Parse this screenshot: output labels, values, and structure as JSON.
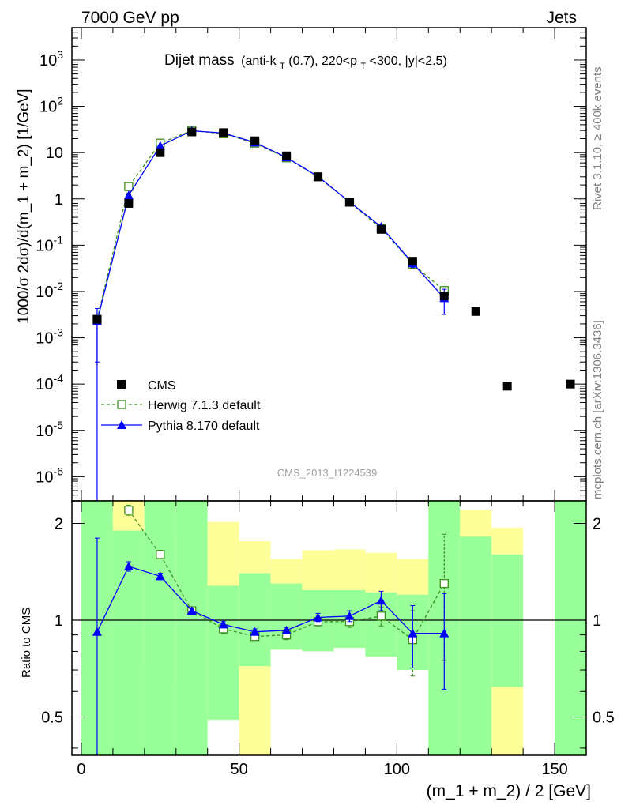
{
  "header": {
    "left": "7000 GeV pp",
    "right": "Jets"
  },
  "side_labels": {
    "rivet": "Rivet 3.1.10, ≥ 400k events",
    "mcplots": "mcplots.cern.ch [arXiv:1306.3436]"
  },
  "chart_data": [
    {
      "type": "scatter",
      "title_main": "Dijet mass",
      "title_sub_parts": [
        "(anti-k",
        "T",
        "(0.7), 220<p",
        "T",
        "<300, |y|<2.5)"
      ],
      "watermark": "CMS_2013_I1224539",
      "ylabel": "1000/σ 2dσ)/d(m_1 + m_2) [1/GeV]",
      "xlim": [
        -3,
        160
      ],
      "ylim": [
        3e-07,
        5000
      ],
      "yscale": "log",
      "y_tick_labels": [
        "10^-6",
        "10^-5",
        "10^-4",
        "10^-3",
        "10^-2",
        "10^-1",
        "1",
        "10",
        "10^2",
        "10^3"
      ],
      "legend_position": "bottom-left",
      "series": [
        {
          "name": "CMS",
          "color": "#000000",
          "marker": "square-filled",
          "x": [
            5,
            15,
            25,
            35,
            45,
            55,
            65,
            75,
            85,
            95,
            105,
            115,
            125,
            135,
            155
          ],
          "y": [
            0.0025,
            0.8,
            10,
            28,
            27,
            18,
            8.5,
            3,
            0.85,
            0.22,
            0.045,
            0.008,
            0.0037,
            9e-05,
            0.0001
          ]
        },
        {
          "name": "Herwig 7.1.3 default",
          "color": "#3d8f1e",
          "marker": "square-open",
          "line": "dashed",
          "x": [
            5,
            15,
            25,
            35,
            45,
            55,
            65,
            75,
            85,
            95,
            105,
            115
          ],
          "y": [
            0.0025,
            1.85,
            16,
            30,
            25.5,
            16,
            7.7,
            3,
            0.85,
            0.23,
            0.039,
            0.0105
          ],
          "yerr": [
            0,
            0.1,
            0.5,
            0.5,
            0.5,
            0.3,
            0.2,
            0.08,
            0.03,
            0.015,
            0.006,
            0.004
          ]
        },
        {
          "name": "Pythia 8.170 default",
          "color": "#0000ff",
          "marker": "triangle-filled",
          "line": "solid",
          "x": [
            5,
            15,
            25,
            35,
            45,
            55,
            65,
            75,
            85,
            95,
            105,
            115
          ],
          "y": [
            0.0023,
            1.2,
            14,
            29.5,
            26.5,
            16.5,
            7.9,
            3.05,
            0.86,
            0.25,
            0.041,
            0.0072
          ],
          "yerr": [
            0.002,
            0.08,
            0.4,
            0.5,
            0.5,
            0.3,
            0.2,
            0.08,
            0.03,
            0.02,
            0.008,
            0.004
          ]
        }
      ]
    },
    {
      "type": "scatter",
      "ylabel": "Ratio to CMS",
      "xlabel": "(m_1 + m_2) / 2 [GeV]",
      "xlim": [
        -3,
        160
      ],
      "ylim": [
        0.38,
        2.35
      ],
      "yscale": "log",
      "reference_line": 1,
      "y_tick_labels": [
        "0.5",
        "1",
        "2"
      ],
      "x_tick_labels": [
        "0",
        "50",
        "100",
        "150"
      ],
      "x_ticks": [
        0,
        50,
        100,
        150
      ],
      "bands": {
        "colors": {
          "outer": "#ffff99",
          "inner": "#99ff99"
        },
        "bins": [
          {
            "x0": 0,
            "x1": 10,
            "outer": [
              0.3,
              3.0
            ],
            "inner": [
              0.3,
              3.0
            ]
          },
          {
            "x0": 10,
            "x1": 20,
            "outer": [
              0.3,
              3.0
            ],
            "inner": [
              0.3,
              1.9
            ]
          },
          {
            "x0": 20,
            "x1": 30,
            "outer": [
              0.72,
              1.48
            ],
            "inner": [
              0.3,
              3.0
            ]
          },
          {
            "x0": 30,
            "x1": 40,
            "outer": [
              0.65,
              1.85
            ],
            "inner": [
              0.3,
              3.0
            ]
          },
          {
            "x0": 40,
            "x1": 50,
            "outer": [
              0.49,
              2.02
            ],
            "inner": [
              0.49,
              1.28
            ]
          },
          {
            "x0": 50,
            "x1": 60,
            "outer": [
              0.3,
              1.76
            ],
            "inner": [
              0.72,
              1.4
            ]
          },
          {
            "x0": 60,
            "x1": 70,
            "outer": [
              0.81,
              1.55
            ],
            "inner": [
              0.81,
              1.3
            ]
          },
          {
            "x0": 70,
            "x1": 80,
            "outer": [
              0.8,
              1.65
            ],
            "inner": [
              0.8,
              1.24
            ]
          },
          {
            "x0": 80,
            "x1": 90,
            "outer": [
              0.82,
              1.66
            ],
            "inner": [
              0.82,
              1.24
            ]
          },
          {
            "x0": 90,
            "x1": 100,
            "outer": [
              0.77,
              1.62
            ],
            "inner": [
              0.77,
              1.22
            ]
          },
          {
            "x0": 100,
            "x1": 110,
            "outer": [
              0.7,
              1.55
            ],
            "inner": [
              0.7,
              1.2
            ]
          },
          {
            "x0": 110,
            "x1": 120,
            "outer": [
              0.3,
              3.0
            ],
            "inner": [
              0.3,
              3.0
            ]
          },
          {
            "x0": 120,
            "x1": 130,
            "outer": [
              0.3,
              2.2
            ],
            "inner": [
              0.3,
              1.82
            ]
          },
          {
            "x0": 130,
            "x1": 140,
            "outer": [
              0.3,
              1.94
            ],
            "inner": [
              0.62,
              1.6
            ]
          },
          {
            "x0": 150,
            "x1": 160,
            "outer": [
              0.3,
              3.0
            ],
            "inner": [
              0.3,
              3.0
            ]
          }
        ]
      },
      "series": [
        {
          "name": "Herwig 7.1.3 default",
          "color": "#3d8f1e",
          "marker": "square-open",
          "line": "dashed",
          "x": [
            15,
            25,
            35,
            45,
            55,
            65,
            75,
            85,
            95,
            105,
            115
          ],
          "y": [
            2.2,
            1.6,
            1.07,
            0.94,
            0.89,
            0.9,
            0.99,
            0.99,
            1.03,
            0.87,
            1.3
          ],
          "yerr": [
            0.08,
            0.05,
            0.03,
            0.03,
            0.02,
            0.03,
            0.03,
            0.04,
            0.07,
            0.2,
            0.55
          ]
        },
        {
          "name": "Pythia 8.170 default",
          "color": "#0000ff",
          "marker": "triangle-filled",
          "line": "solid",
          "x": [
            5,
            15,
            25,
            35,
            45,
            55,
            65,
            75,
            85,
            95,
            105,
            115
          ],
          "y": [
            0.92,
            1.47,
            1.37,
            1.07,
            0.97,
            0.92,
            0.93,
            1.02,
            1.03,
            1.15,
            0.91,
            0.91
          ],
          "yerr": [
            0.88,
            0.05,
            0.03,
            0.02,
            0.02,
            0.02,
            0.02,
            0.03,
            0.04,
            0.08,
            0.2,
            0.3
          ]
        }
      ]
    }
  ]
}
